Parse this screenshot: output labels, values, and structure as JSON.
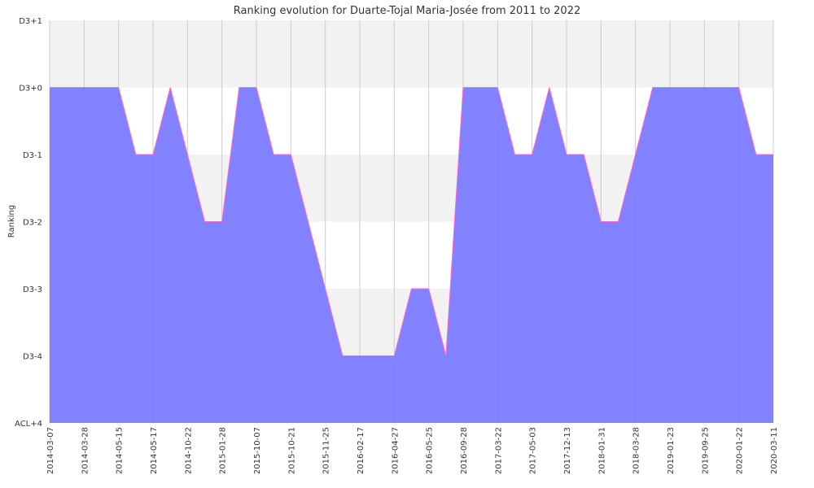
{
  "chart_data": {
    "type": "area",
    "title": "Ranking evolution for Duarte-Tojal Maria-Josée from 2011 to 2022",
    "xlabel": "",
    "ylabel": "Ranking",
    "y_tick_labels": [
      "D3+1",
      "D3+0",
      "D3-1",
      "D3-2",
      "D3-3",
      "D3-4",
      "ACL+4"
    ],
    "y_tick_levels": [
      6,
      5,
      4,
      3,
      2,
      1,
      0
    ],
    "ylim": [
      0,
      6
    ],
    "x_tick_labels": [
      "2014-03-07",
      "2014-03-28",
      "2014-05-15",
      "2014-05-17",
      "2014-10-22",
      "2015-01-28",
      "2015-10-07",
      "2015-10-21",
      "2015-11-25",
      "2016-02-17",
      "2016-04-27",
      "2016-05-25",
      "2016-09-28",
      "2017-03-22",
      "2017-05-03",
      "2017-12-13",
      "2018-01-31",
      "2018-03-28",
      "2019-01-23",
      "2019-09-25",
      "2020-01-22",
      "2020-03-11"
    ],
    "points": [
      {
        "x": 0,
        "y": 5
      },
      {
        "x": 1,
        "y": 5
      },
      {
        "x": 2,
        "y": 5
      },
      {
        "x": 2.5,
        "y": 4
      },
      {
        "x": 3,
        "y": 4
      },
      {
        "x": 3.5,
        "y": 5
      },
      {
        "x": 4,
        "y": 4
      },
      {
        "x": 4.5,
        "y": 3
      },
      {
        "x": 5,
        "y": 3
      },
      {
        "x": 5.5,
        "y": 5
      },
      {
        "x": 6,
        "y": 5
      },
      {
        "x": 6.5,
        "y": 4
      },
      {
        "x": 7,
        "y": 4
      },
      {
        "x": 7.5,
        "y": 3
      },
      {
        "x": 8,
        "y": 2
      },
      {
        "x": 8.5,
        "y": 1
      },
      {
        "x": 9,
        "y": 1
      },
      {
        "x": 9.5,
        "y": 1
      },
      {
        "x": 10,
        "y": 1
      },
      {
        "x": 10.5,
        "y": 2
      },
      {
        "x": 11,
        "y": 2
      },
      {
        "x": 11.5,
        "y": 1
      },
      {
        "x": 12,
        "y": 5
      },
      {
        "x": 12.5,
        "y": 5
      },
      {
        "x": 13,
        "y": 5
      },
      {
        "x": 13.5,
        "y": 4
      },
      {
        "x": 14,
        "y": 4
      },
      {
        "x": 14.5,
        "y": 5
      },
      {
        "x": 15,
        "y": 4
      },
      {
        "x": 15.5,
        "y": 4
      },
      {
        "x": 16,
        "y": 3
      },
      {
        "x": 16.5,
        "y": 3
      },
      {
        "x": 17,
        "y": 4
      },
      {
        "x": 17.5,
        "y": 5
      },
      {
        "x": 18,
        "y": 5
      },
      {
        "x": 18.5,
        "y": 5
      },
      {
        "x": 19,
        "y": 5
      },
      {
        "x": 19.5,
        "y": 5
      },
      {
        "x": 20,
        "y": 5
      },
      {
        "x": 20.5,
        "y": 4
      },
      {
        "x": 21,
        "y": 4
      }
    ],
    "grid": true,
    "legend": "none",
    "colors": {
      "fill": "#7b7bff",
      "line": "#ff66cc",
      "band_shaded": "#f2f2f2",
      "band_plain": "#ffffff",
      "grid": "#cccccc"
    }
  }
}
